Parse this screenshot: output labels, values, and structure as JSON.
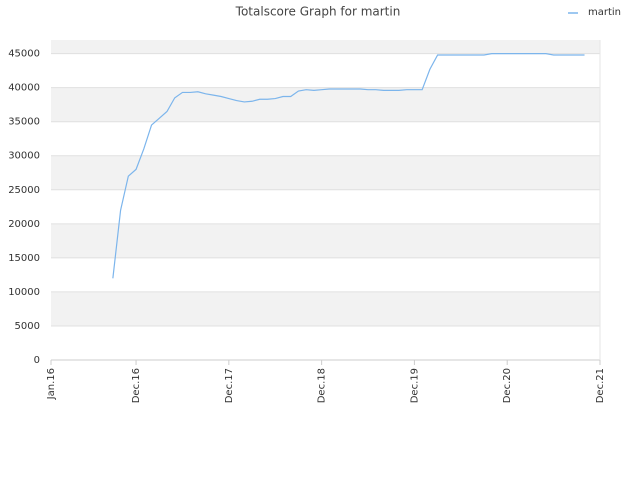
{
  "chart_data": {
    "type": "line",
    "title": "Totalscore Graph for martin",
    "x": [
      "2016-09",
      "2016-10",
      "2016-11",
      "2016-12",
      "2017-01",
      "2017-02",
      "2017-03",
      "2017-04",
      "2017-05",
      "2017-06",
      "2017-07",
      "2017-08",
      "2017-09",
      "2017-10",
      "2017-11",
      "2017-12",
      "2018-01",
      "2018-02",
      "2018-03",
      "2018-04",
      "2018-05",
      "2018-06",
      "2018-07",
      "2018-08",
      "2018-09",
      "2018-10",
      "2018-11",
      "2018-12",
      "2019-01",
      "2019-02",
      "2019-03",
      "2019-04",
      "2019-05",
      "2019-06",
      "2019-07",
      "2019-08",
      "2019-09",
      "2019-10",
      "2019-11",
      "2019-12",
      "2020-01",
      "2020-02",
      "2020-03",
      "2020-04",
      "2020-05",
      "2020-06",
      "2020-07",
      "2020-08",
      "2020-09",
      "2020-10",
      "2020-11",
      "2020-12",
      "2021-01",
      "2021-02",
      "2021-03",
      "2021-04",
      "2021-05",
      "2021-06",
      "2021-07",
      "2021-08",
      "2021-09",
      "2021-10"
    ],
    "series": [
      {
        "name": "martin",
        "color": "#7cb5ec",
        "values": [
          12000,
          22000,
          27000,
          28000,
          31000,
          34500,
          35500,
          36500,
          38500,
          39300,
          39300,
          39400,
          39100,
          38900,
          38700,
          38400,
          38100,
          37900,
          38000,
          38300,
          38300,
          38400,
          38700,
          38700,
          39500,
          39700,
          39600,
          39700,
          39800,
          39800,
          39800,
          39800,
          39800,
          39700,
          39700,
          39600,
          39600,
          39600,
          39700,
          39700,
          39700,
          42700,
          44800,
          44800,
          44800,
          44800,
          44800,
          44800,
          44800,
          45000,
          45000,
          45000,
          45000,
          45000,
          45000,
          45000,
          45000,
          44800,
          44800,
          44800,
          44800,
          44800
        ]
      }
    ],
    "xlim": [
      "2016-01",
      "2021-12"
    ],
    "xticks": [
      {
        "value": "2016-01",
        "label": "Jan.16"
      },
      {
        "value": "2016-12",
        "label": "Dec.16"
      },
      {
        "value": "2017-12",
        "label": "Dec.17"
      },
      {
        "value": "2018-12",
        "label": "Dec.18"
      },
      {
        "value": "2019-12",
        "label": "Dec.19"
      },
      {
        "value": "2020-12",
        "label": "Dec.20"
      },
      {
        "value": "2021-12",
        "label": "Dec.21"
      }
    ],
    "ylim": [
      0,
      47000
    ],
    "yticks": [
      0,
      5000,
      10000,
      15000,
      20000,
      25000,
      30000,
      35000,
      40000,
      45000
    ],
    "grid": true,
    "legend": "top-right"
  }
}
